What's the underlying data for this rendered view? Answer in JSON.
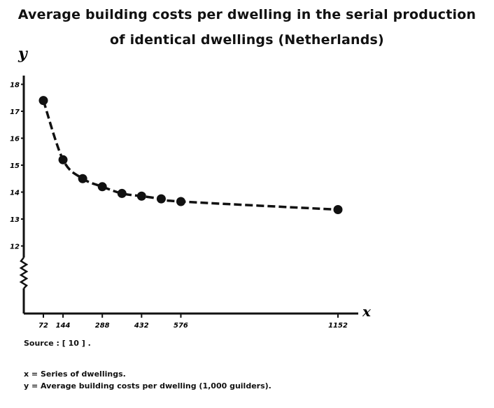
{
  "title_line1": "Average building costs per dwelling in the serial production",
  "title_line2": "of identical dwellings (Netherlands)",
  "source": "Source : [ 10 ] .",
  "legend_x": "x = Series of dwellings.",
  "legend_y": "y = Average building costs per dwelling (1,000 guilders).",
  "chart_data": {
    "type": "line",
    "xlabel": "x",
    "ylabel": "y",
    "x_ticks": [
      72,
      144,
      288,
      432,
      576,
      1152
    ],
    "y_ticks": [
      12,
      13,
      14,
      15,
      16,
      17,
      18
    ],
    "y_tick_labels": [
      "12",
      "13",
      "14",
      "15",
      "16",
      "17",
      "18"
    ],
    "y_axis_break": true,
    "grid": false,
    "series": [
      {
        "x": [
          72,
          144,
          216,
          288,
          360,
          432,
          504,
          576,
          1152
        ],
        "y": [
          17.4,
          15.2,
          14.5,
          14.2,
          13.95,
          13.85,
          13.75,
          13.65,
          13.35
        ]
      }
    ]
  }
}
